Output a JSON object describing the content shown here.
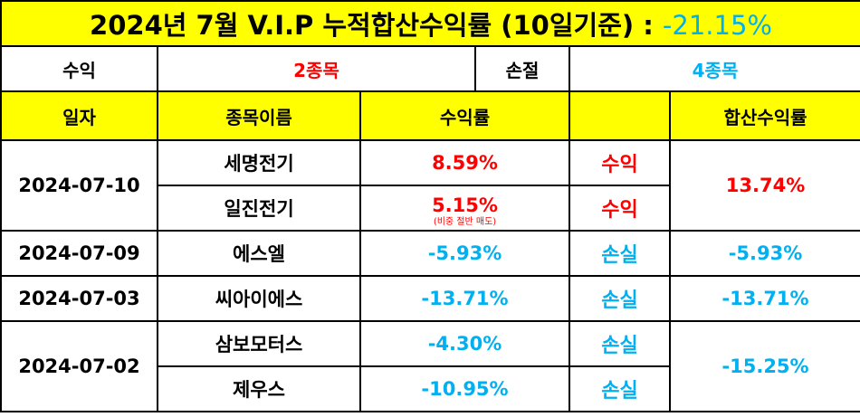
{
  "title": {
    "text": "2024년 7월 V.I.P 누적합산수익률 (10일기준) : ",
    "return_value": "-21.15%"
  },
  "summary": {
    "profit_label": "수익",
    "profit_count": "2종목",
    "loss_label": "손절",
    "loss_count": "4종목"
  },
  "headers": {
    "date": "일자",
    "stock_name": "종목이름",
    "return_rate": "수익률",
    "status": "",
    "total_return": "합산수익률"
  },
  "groups": [
    {
      "date": "2024-07-10",
      "total_return": "13.74%",
      "rows": [
        {
          "name": "세명전기",
          "return_rate": "8.59%",
          "note": "",
          "status": "수익"
        },
        {
          "name": "일진전기",
          "return_rate": "5.15%",
          "note": "(비중 절반 매도)",
          "status": "수익"
        }
      ]
    },
    {
      "date": "2024-07-09",
      "total_return": "-5.93%",
      "rows": [
        {
          "name": "에스엘",
          "return_rate": "-5.93%",
          "note": "",
          "status": "손실"
        }
      ]
    },
    {
      "date": "2024-07-03",
      "total_return": "-13.71%",
      "rows": [
        {
          "name": "씨아이에스",
          "return_rate": "-13.71%",
          "note": "",
          "status": "손실"
        }
      ]
    },
    {
      "date": "2024-07-02",
      "total_return": "-15.25%",
      "rows": [
        {
          "name": "삼보모터스",
          "return_rate": "-4.30%",
          "note": "",
          "status": "손실"
        },
        {
          "name": "제우스",
          "return_rate": "-10.95%",
          "note": "",
          "status": "손실"
        }
      ]
    }
  ],
  "colors": {
    "header_bg": "#ffff00",
    "profit": "#ff0000",
    "loss": "#00b0f0",
    "border": "#000000"
  }
}
